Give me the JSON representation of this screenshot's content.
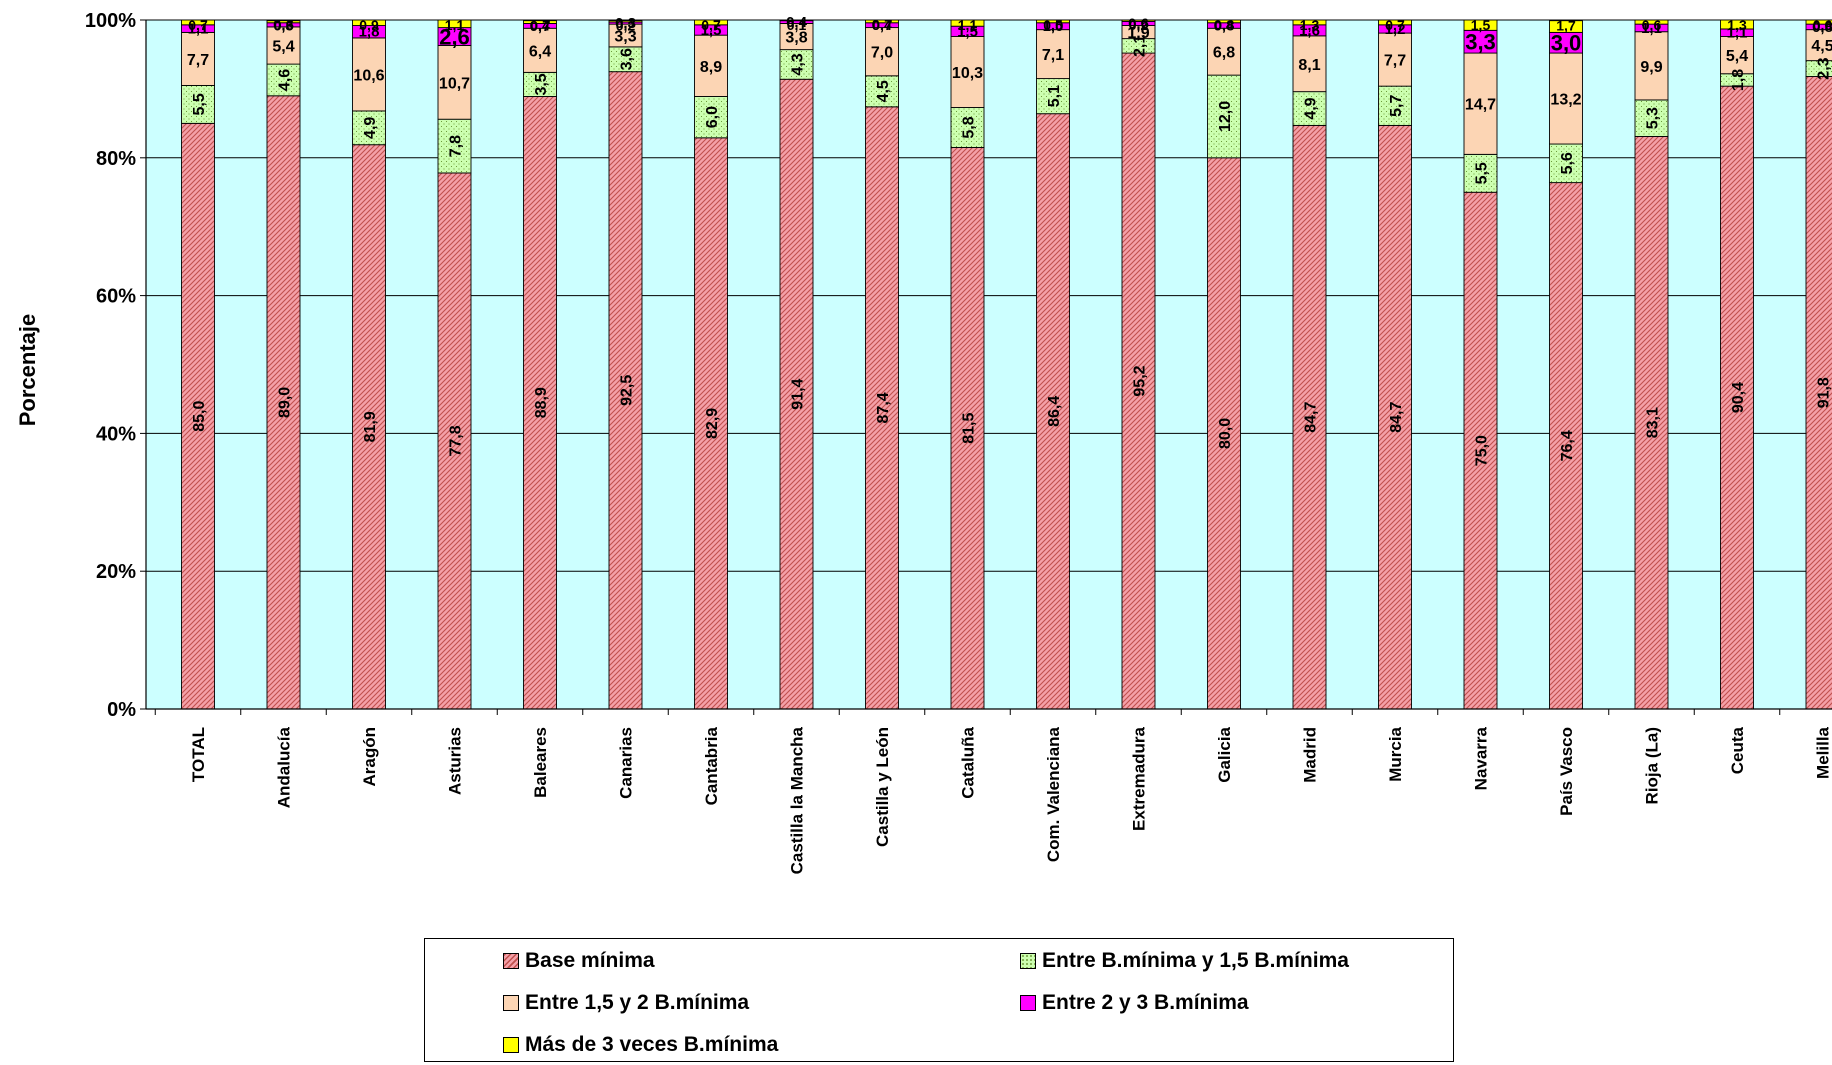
{
  "chart_data": {
    "type": "bar",
    "stacked": true,
    "percent": true,
    "ylabel": "Porcentaje",
    "yticks": [
      "0%",
      "20%",
      "40%",
      "60%",
      "80%",
      "100%"
    ],
    "ylim": [
      0,
      100
    ],
    "grid": true,
    "legend_position": "bottom",
    "categories": [
      "TOTAL",
      "Andalucía",
      "Aragón",
      "Asturias",
      "Baleares",
      "Canarias",
      "Cantabria",
      "Castilla la Mancha",
      "Castilla y León",
      "Cataluña",
      "Com. Valenciana",
      "Extremadura",
      "Galicia",
      "Madrid",
      "Murcia",
      "Navarra",
      "País Vasco",
      "Rioja (La)",
      "Ceuta",
      "Melilla"
    ],
    "series": [
      {
        "name": "Base mínima",
        "color": "#f4a0a8",
        "hatch": "#c0504d",
        "values": [
          85.0,
          89.0,
          81.9,
          77.8,
          88.9,
          92.5,
          82.9,
          91.4,
          87.4,
          81.5,
          86.4,
          95.2,
          80.0,
          84.7,
          84.7,
          75.0,
          76.4,
          83.1,
          90.4,
          91.8
        ],
        "labels": [
          "85,0",
          "89,0",
          "81,9",
          "77,8",
          "88,9",
          "92,5",
          "82,9",
          "91,4",
          "87,4",
          "81,5",
          "86,4",
          "95,2",
          "80,0",
          "84,7",
          "84,7",
          "75,0",
          "76,4",
          "83,1",
          "90,4",
          "91,8"
        ]
      },
      {
        "name": "Entre B.mínima y 1,5 B.mínima",
        "color": "#ccffb0",
        "hatch": "#6e9b3a",
        "values": [
          5.5,
          4.6,
          4.9,
          7.8,
          3.5,
          3.6,
          6.0,
          4.3,
          4.5,
          5.8,
          5.1,
          2.1,
          12.0,
          4.9,
          5.7,
          5.5,
          5.6,
          5.3,
          1.8,
          2.3
        ],
        "labels": [
          "5,5",
          "4,6",
          "4,9",
          "7,8",
          "3,5",
          "3,6",
          "6,0",
          "4,3",
          "4,5",
          "5,8",
          "5,1",
          "2,1",
          "12,0",
          "4,9",
          "5,7",
          "5,5",
          "5,6",
          "5,3",
          "1,8",
          "2,3"
        ]
      },
      {
        "name": "Entre 1,5 y 2 B.mínima",
        "color": "#fcd5b4",
        "values": [
          7.7,
          5.4,
          10.6,
          10.7,
          6.4,
          3.3,
          8.9,
          3.8,
          7.0,
          10.3,
          7.1,
          1.9,
          6.8,
          8.1,
          7.7,
          14.7,
          13.2,
          9.9,
          5.4,
          4.5
        ],
        "labels": [
          "7,7",
          "5,4",
          "10,6",
          "10,7",
          "6,4",
          "3,3",
          "8,9",
          "3,8",
          "7,0",
          "10,3",
          "7,1",
          "1,9",
          "6,8",
          "8,1",
          "7,7",
          "14,7",
          "13,2",
          "9,9",
          "5,4",
          "4,5"
        ]
      },
      {
        "name": "Entre 2 y 3 B.mínima",
        "color": "#ff00ff",
        "values": [
          1.1,
          0.6,
          1.8,
          2.6,
          0.7,
          0.3,
          1.5,
          0.4,
          0.7,
          1.5,
          1.0,
          0.6,
          0.8,
          1.6,
          1.2,
          3.3,
          3.0,
          1.1,
          1.1,
          0.8
        ],
        "labels": [
          "1,1",
          "0,6",
          "1,8",
          "2,6",
          "0,7",
          "0,3",
          "1,5",
          "0,4",
          "0,7",
          "1,5",
          "1,0",
          "0,6",
          "0,8",
          "1,6",
          "1,2",
          "3,3",
          "3,0",
          "1,1",
          "1,1",
          "0,8"
        ]
      },
      {
        "name": "Más de 3 veces B.mínima",
        "color": "#ffff00",
        "values": [
          0.7,
          0.3,
          0.9,
          1.1,
          0.4,
          0.2,
          0.7,
          0.1,
          0.4,
          1.1,
          0.5,
          0.2,
          0.4,
          1.3,
          0.7,
          1.5,
          1.7,
          0.6,
          1.3,
          0.6
        ],
        "labels": [
          "0,7",
          "0,3",
          "0,9",
          "1,1",
          "0,4",
          "0,2",
          "0,7",
          "0,1",
          "0,4",
          "1,1",
          "0,5",
          "0,2",
          "0,4",
          "1,3",
          "0,7",
          "1,5",
          "1,7",
          "0,6",
          "1,3",
          "0,6"
        ]
      }
    ]
  }
}
